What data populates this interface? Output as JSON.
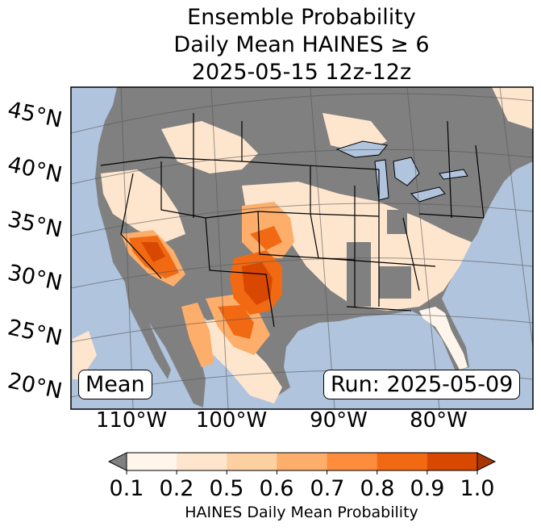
{
  "title": {
    "line1": "Ensemble Probability",
    "line2": "Daily Mean HAINES ≥ 6",
    "line3": "2025-05-15 12z-12z"
  },
  "lat_labels": [
    "45°N",
    "40°N",
    "35°N",
    "30°N",
    "25°N",
    "20°N"
  ],
  "lon_labels": [
    "110°W",
    "100°W",
    "90°W",
    "80°W"
  ],
  "mean_label": "Mean",
  "run_label": "Run: 2025-05-09",
  "colorbar": {
    "ticks": [
      "0.1",
      "0.2",
      "0.5",
      "0.6",
      "0.7",
      "0.8",
      "0.9",
      "1.0"
    ],
    "label": "HAINES Daily Mean Probability",
    "under_color": "#808080",
    "colors": [
      "#fff5eb",
      "#fee6ce",
      "#fdd0a2",
      "#fdae6b",
      "#fd8d3c",
      "#f16913",
      "#d94801",
      "#a63603"
    ]
  },
  "colors": {
    "ocean": "#b0c4de",
    "land_low": "#808080",
    "lakes": "#b0c4de"
  }
}
